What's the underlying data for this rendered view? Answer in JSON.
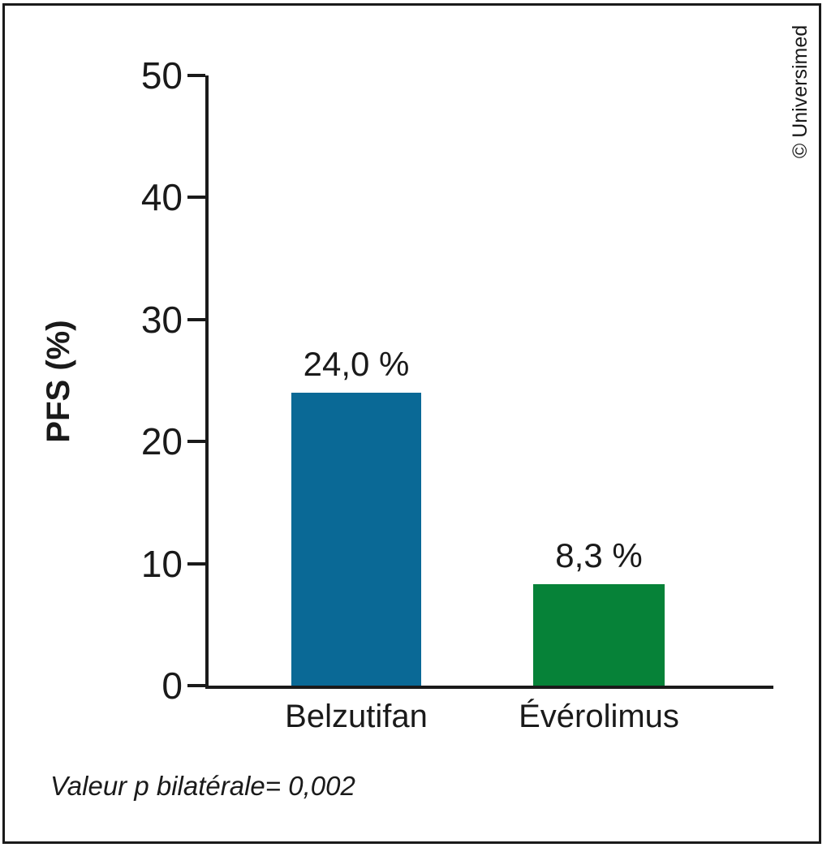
{
  "watermark": "© Universimed",
  "footnote": "Valeur p bilatérale= 0,002",
  "chart_data": {
    "type": "bar",
    "title": "",
    "categories": [
      "Belzutifan",
      "Évérolimus"
    ],
    "values": [
      24.0,
      8.3
    ],
    "value_labels": [
      "24,0 %",
      "8,3 %"
    ],
    "bar_colors": [
      "#0a6996",
      "#068238"
    ],
    "xlabel": "",
    "ylabel": "PFS (%)",
    "ylim": [
      0,
      50
    ],
    "yticks": [
      0,
      10,
      20,
      30,
      40,
      50
    ],
    "grid": false,
    "legend": false,
    "annotation": "Valeur p bilatérale= 0,002"
  }
}
